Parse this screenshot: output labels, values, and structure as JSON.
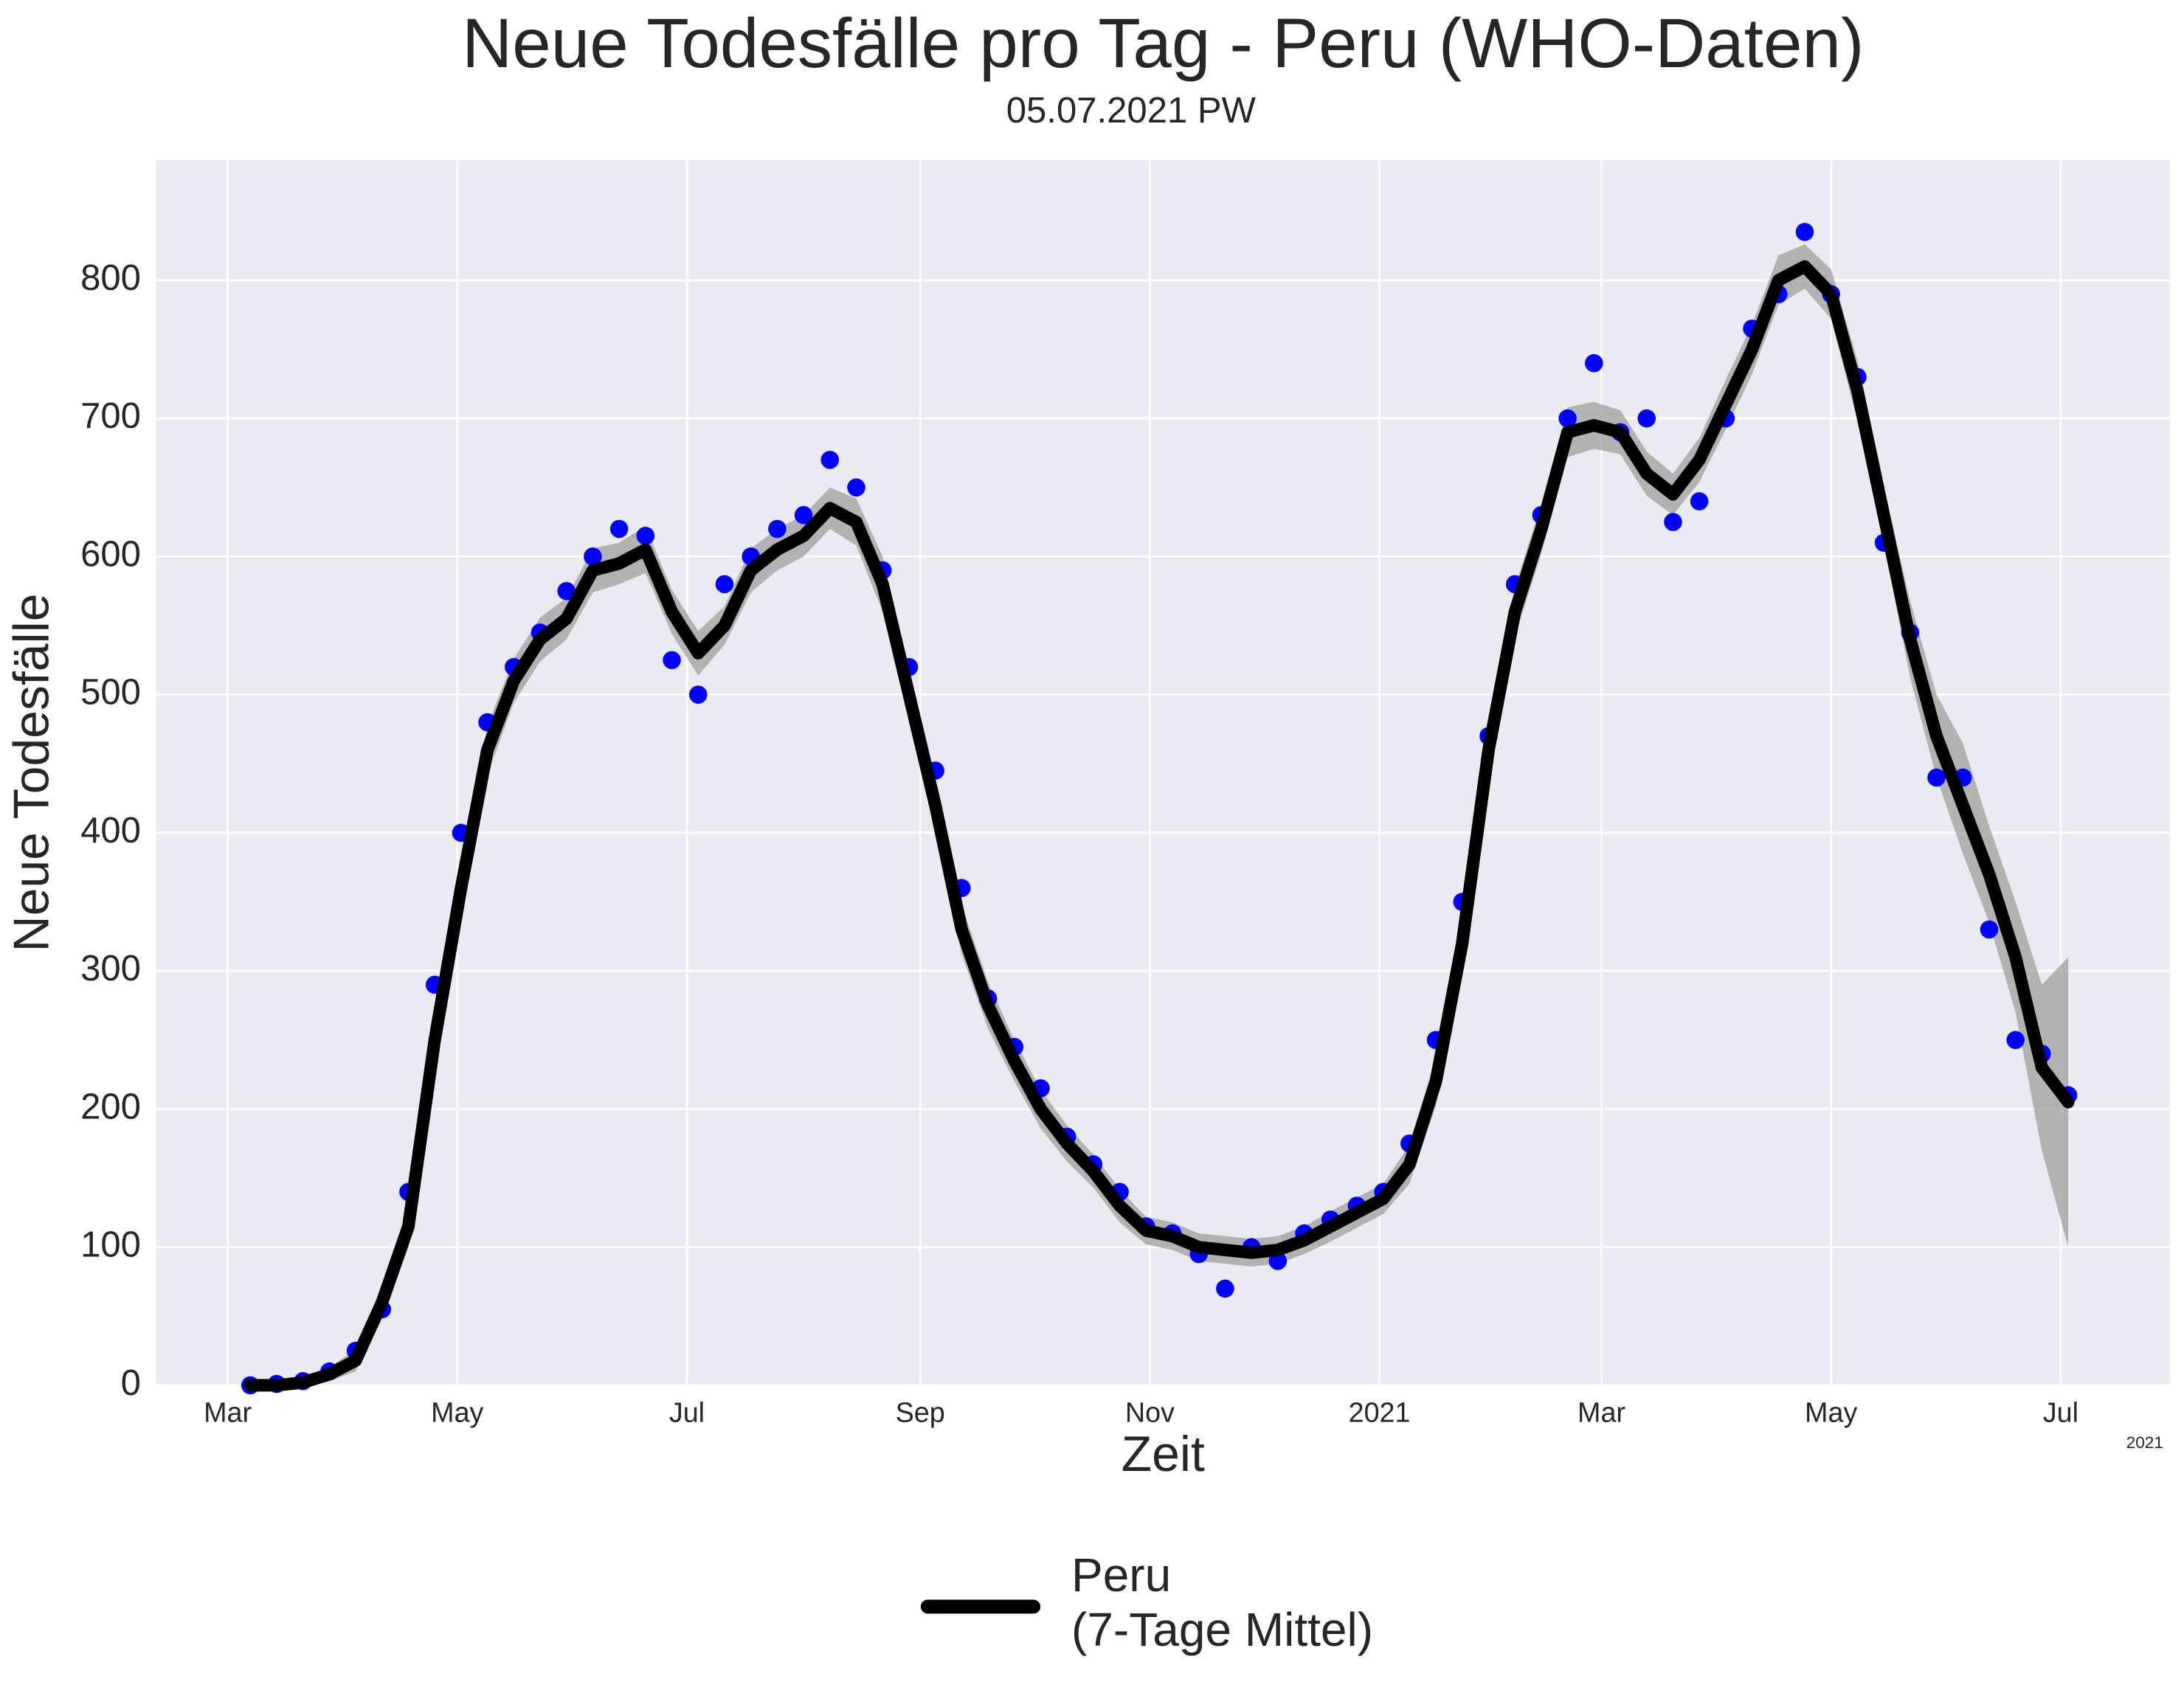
{
  "chart_data": {
    "type": "line",
    "title": "Neue Todesfälle pro Tag - Peru (WHO-Daten)",
    "subtitle": "05.07.2021 PW",
    "x_label": "Zeit",
    "y_label": "Neue Todesfälle",
    "x_offset_label": "2021",
    "x": [
      "2020-03-07",
      "2020-03-14",
      "2020-03-21",
      "2020-03-28",
      "2020-04-04",
      "2020-04-11",
      "2020-04-18",
      "2020-04-25",
      "2020-05-02",
      "2020-05-09",
      "2020-05-16",
      "2020-05-23",
      "2020-05-30",
      "2020-06-06",
      "2020-06-13",
      "2020-06-20",
      "2020-06-27",
      "2020-07-04",
      "2020-07-11",
      "2020-07-18",
      "2020-07-25",
      "2020-08-01",
      "2020-08-08",
      "2020-08-15",
      "2020-08-22",
      "2020-08-29",
      "2020-09-05",
      "2020-09-12",
      "2020-09-19",
      "2020-09-26",
      "2020-10-03",
      "2020-10-10",
      "2020-10-17",
      "2020-10-24",
      "2020-10-31",
      "2020-11-07",
      "2020-11-14",
      "2020-11-21",
      "2020-11-28",
      "2020-12-05",
      "2020-12-12",
      "2020-12-19",
      "2020-12-26",
      "2021-01-02",
      "2021-01-09",
      "2021-01-16",
      "2021-01-23",
      "2021-01-30",
      "2021-02-06",
      "2021-02-13",
      "2021-02-20",
      "2021-02-27",
      "2021-03-06",
      "2021-03-13",
      "2021-03-20",
      "2021-03-27",
      "2021-04-03",
      "2021-04-10",
      "2021-04-17",
      "2021-04-24",
      "2021-05-01",
      "2021-05-08",
      "2021-05-15",
      "2021-05-22",
      "2021-05-29",
      "2021-06-05",
      "2021-06-12",
      "2021-06-19",
      "2021-06-26",
      "2021-07-03"
    ],
    "series": [
      {
        "name": "Peru\n(7-Tage Mittel)",
        "color": "#000000",
        "values": [
          0,
          0,
          2,
          8,
          18,
          60,
          115,
          250,
          360,
          460,
          510,
          540,
          555,
          590,
          595,
          605,
          560,
          530,
          550,
          590,
          605,
          615,
          635,
          625,
          580,
          500,
          420,
          330,
          275,
          235,
          200,
          175,
          155,
          130,
          112,
          108,
          100,
          98,
          96,
          98,
          105,
          115,
          125,
          135,
          160,
          220,
          320,
          460,
          560,
          620,
          690,
          695,
          690,
          660,
          645,
          670,
          710,
          750,
          800,
          810,
          790,
          720,
          630,
          540,
          470,
          420,
          370,
          310,
          230,
          205
        ]
      }
    ],
    "dots": {
      "color": "#0000ff",
      "values": [
        0,
        1,
        3,
        10,
        25,
        55,
        140,
        290,
        400,
        480,
        520,
        545,
        575,
        600,
        620,
        615,
        525,
        500,
        580,
        600,
        620,
        630,
        670,
        650,
        590,
        520,
        445,
        360,
        280,
        245,
        215,
        180,
        160,
        140,
        115,
        110,
        95,
        70,
        100,
        90,
        110,
        120,
        130,
        140,
        175,
        250,
        350,
        470,
        580,
        630,
        700,
        740,
        690,
        700,
        625,
        640,
        700,
        765,
        790,
        835,
        790,
        730,
        610,
        545,
        440,
        440,
        330,
        250,
        240,
        210
      ]
    },
    "band_color": "#a8a8a8",
    "band_lower": [
      0,
      0,
      0,
      3,
      10,
      48,
      100,
      232,
      342,
      442,
      494,
      524,
      540,
      574,
      580,
      588,
      544,
      514,
      536,
      574,
      590,
      600,
      620,
      608,
      560,
      482,
      402,
      312,
      258,
      220,
      186,
      162,
      143,
      118,
      102,
      98,
      90,
      88,
      86,
      88,
      95,
      104,
      114,
      124,
      146,
      202,
      300,
      440,
      542,
      602,
      672,
      678,
      674,
      644,
      630,
      654,
      692,
      732,
      782,
      794,
      772,
      698,
      610,
      512,
      440,
      385,
      335,
      270,
      170,
      100
    ],
    "band_upper": [
      2,
      2,
      5,
      13,
      26,
      72,
      130,
      268,
      378,
      478,
      526,
      556,
      570,
      606,
      610,
      622,
      576,
      546,
      564,
      606,
      620,
      630,
      650,
      642,
      600,
      518,
      438,
      348,
      292,
      250,
      214,
      188,
      167,
      142,
      122,
      118,
      110,
      108,
      106,
      108,
      115,
      126,
      136,
      146,
      174,
      238,
      340,
      480,
      578,
      638,
      708,
      712,
      706,
      676,
      660,
      686,
      728,
      768,
      818,
      826,
      808,
      742,
      650,
      568,
      500,
      465,
      405,
      350,
      290,
      310
    ],
    "xlim": [
      "2020-02-11",
      "2021-07-30"
    ],
    "xticks": [
      {
        "value": "2020-03-01",
        "label": "Mar"
      },
      {
        "value": "2020-05-01",
        "label": "May"
      },
      {
        "value": "2020-07-01",
        "label": "Jul"
      },
      {
        "value": "2020-09-01",
        "label": "Sep"
      },
      {
        "value": "2020-11-01",
        "label": "Nov"
      },
      {
        "value": "2021-01-01",
        "label": "2021"
      },
      {
        "value": "2021-03-01",
        "label": "Mar"
      },
      {
        "value": "2021-05-01",
        "label": "May"
      },
      {
        "value": "2021-07-01",
        "label": "Jul"
      }
    ],
    "ylim": [
      0,
      887
    ],
    "yticks": [
      0,
      100,
      200,
      300,
      400,
      500,
      600,
      700,
      800
    ],
    "grid": true,
    "legend_position": "bottom"
  }
}
